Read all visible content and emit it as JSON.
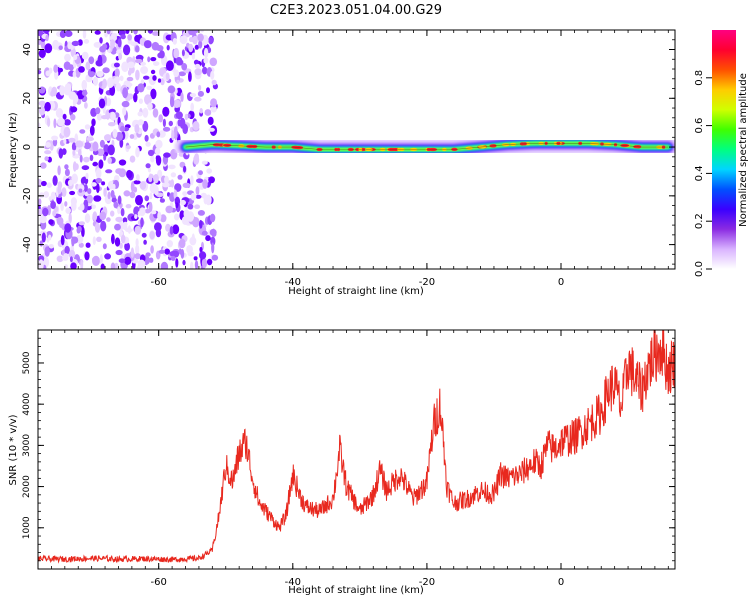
{
  "title": "C2E3.2023.051.04.00.G29",
  "chart_data": [
    {
      "type": "heatmap",
      "xlabel": "Height of straight line (km)",
      "ylabel": "Frequency (Hz)",
      "xlim": [
        -78,
        17
      ],
      "ylim": [
        -50,
        48
      ],
      "x_ticks": [
        -60,
        -40,
        -20,
        0
      ],
      "x_tick_labels": [
        "-60",
        "-40",
        "-20",
        "0"
      ],
      "y_ticks": [
        -40,
        -20,
        0,
        20,
        40
      ],
      "y_tick_labels": [
        "-40",
        "-20",
        "0",
        "20",
        "40"
      ],
      "colorbar": {
        "label": "Normalized spectral amplitude",
        "range": [
          0,
          1
        ],
        "ticks": [
          0.0,
          0.2,
          0.4,
          0.6,
          0.8
        ],
        "tick_labels": [
          "0.0",
          "0.2",
          "0.4",
          "0.6",
          "0.8"
        ],
        "colormap": [
          "#ffffff",
          "#d9b3ff",
          "#8a2be2",
          "#3a00ff",
          "#0050ff",
          "#00d5ff",
          "#00ff80",
          "#40ff00",
          "#d0ff00",
          "#ffcc00",
          "#ff5000",
          "#ff0030",
          "#ff0080"
        ]
      },
      "noise_region": {
        "x_range": [
          -78,
          -53
        ],
        "freq_range": [
          -50,
          48
        ]
      },
      "signal_track": {
        "x": [
          -56,
          -52,
          -48,
          -44,
          -40,
          -36,
          -32,
          -28,
          -24,
          -20,
          -16,
          -12,
          -8,
          -4,
          0,
          4,
          8,
          12,
          16
        ],
        "freq": [
          0,
          1,
          0.5,
          0,
          0,
          -1,
          -1,
          -1,
          -1,
          -1,
          -1,
          0,
          1,
          1.5,
          1.5,
          1.5,
          1,
          0,
          0
        ]
      },
      "grid": false
    },
    {
      "type": "line",
      "xlabel": "Height of straight line (km)",
      "ylabel": "SNR (10 * v/v)",
      "xlim": [
        -78,
        17
      ],
      "ylim": [
        0,
        5800
      ],
      "x_ticks": [
        -60,
        -40,
        -20,
        0
      ],
      "x_tick_labels": [
        "-60",
        "-40",
        "-20",
        "0"
      ],
      "y_ticks": [
        1000,
        2000,
        3000,
        4000,
        5000
      ],
      "y_tick_labels": [
        "1000",
        "2000",
        "3000",
        "4000",
        "5000"
      ],
      "color": "#e8281e",
      "series": [
        {
          "x": [
            -78,
            -74,
            -70,
            -66,
            -62,
            -58,
            -54,
            -52,
            -51,
            -50,
            -49,
            -48,
            -47,
            -46,
            -45,
            -44,
            -42,
            -41,
            -40,
            -39,
            -38,
            -36,
            -34,
            -33,
            -32,
            -30,
            -28,
            -27,
            -26,
            -24,
            -22,
            -20,
            -19,
            -18,
            -17,
            -16,
            -14,
            -12,
            -10,
            -9,
            -8,
            -6,
            -4,
            -3,
            -2,
            -1,
            0,
            2,
            4,
            6,
            7,
            8,
            9,
            10,
            12,
            13,
            14,
            15,
            16,
            17
          ],
          "y": [
            250,
            240,
            260,
            240,
            250,
            230,
            260,
            450,
            1300,
            2500,
            2100,
            2800,
            3100,
            2200,
            1600,
            1400,
            1000,
            1300,
            2300,
            1800,
            1500,
            1400,
            1700,
            2900,
            2000,
            1400,
            1800,
            2400,
            1900,
            2300,
            1700,
            2100,
            3500,
            4000,
            2000,
            1600,
            1700,
            1900,
            1800,
            2300,
            2200,
            2300,
            2600,
            2500,
            3000,
            2900,
            3100,
            3200,
            3500,
            3800,
            4300,
            4500,
            3900,
            5000,
            4300,
            4900,
            5200,
            5400,
            4800,
            5100
          ]
        }
      ],
      "grid": false
    }
  ]
}
